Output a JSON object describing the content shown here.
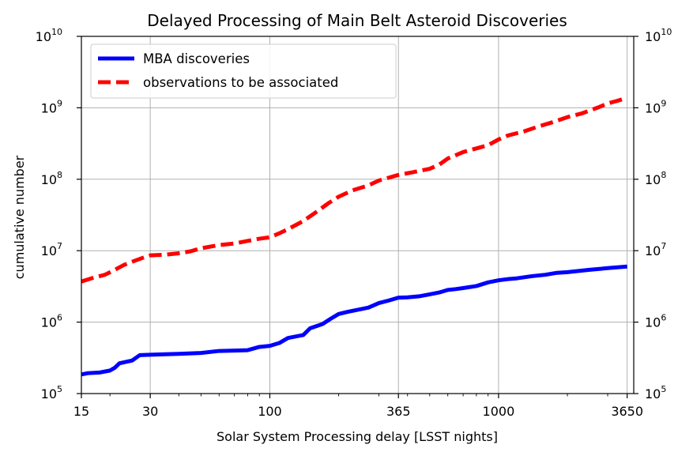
{
  "chart_data": {
    "type": "line",
    "title": "Delayed Processing of Main Belt Asteroid Discoveries",
    "xlabel": "Solar System Processing delay [LSST nights]",
    "ylabel": "cumulative number",
    "xscale": "log",
    "yscale": "log",
    "xlim": [
      15,
      3900
    ],
    "ylim": [
      100000,
      10000000000
    ],
    "x_ticks": [
      15,
      30,
      100,
      365,
      1000,
      3650
    ],
    "x_tick_labels": [
      "15",
      "30",
      "100",
      "365",
      "1000",
      "3650"
    ],
    "y_ticks": [
      100000,
      1000000,
      10000000,
      100000000,
      1000000000,
      10000000000
    ],
    "y_tick_labels": [
      {
        "base": "10",
        "exp": "5"
      },
      {
        "base": "10",
        "exp": "6"
      },
      {
        "base": "10",
        "exp": "7"
      },
      {
        "base": "10",
        "exp": "8"
      },
      {
        "base": "10",
        "exp": "9"
      },
      {
        "base": "10",
        "exp": "10"
      }
    ],
    "right_axis_mirrored": true,
    "grid": true,
    "legend_position": "top-left",
    "series": [
      {
        "name": "MBA discoveries",
        "color": "#0000ff",
        "style": "solid",
        "points": [
          [
            15,
            185000
          ],
          [
            16,
            193000
          ],
          [
            18,
            197000
          ],
          [
            20,
            210000
          ],
          [
            21,
            230000
          ],
          [
            22,
            265000
          ],
          [
            25,
            290000
          ],
          [
            27,
            345000
          ],
          [
            30,
            350000
          ],
          [
            35,
            355000
          ],
          [
            40,
            360000
          ],
          [
            50,
            370000
          ],
          [
            60,
            395000
          ],
          [
            70,
            400000
          ],
          [
            80,
            405000
          ],
          [
            90,
            450000
          ],
          [
            100,
            465000
          ],
          [
            110,
            510000
          ],
          [
            120,
            600000
          ],
          [
            140,
            660000
          ],
          [
            150,
            820000
          ],
          [
            160,
            880000
          ],
          [
            170,
            940000
          ],
          [
            185,
            1120000
          ],
          [
            200,
            1300000
          ],
          [
            220,
            1400000
          ],
          [
            250,
            1520000
          ],
          [
            270,
            1600000
          ],
          [
            300,
            1850000
          ],
          [
            330,
            2000000
          ],
          [
            365,
            2200000
          ],
          [
            400,
            2220000
          ],
          [
            450,
            2300000
          ],
          [
            500,
            2450000
          ],
          [
            550,
            2600000
          ],
          [
            600,
            2820000
          ],
          [
            650,
            2900000
          ],
          [
            700,
            3000000
          ],
          [
            800,
            3200000
          ],
          [
            900,
            3600000
          ],
          [
            1000,
            3850000
          ],
          [
            1100,
            4000000
          ],
          [
            1200,
            4100000
          ],
          [
            1400,
            4400000
          ],
          [
            1600,
            4600000
          ],
          [
            1800,
            4900000
          ],
          [
            2000,
            5000000
          ],
          [
            2500,
            5400000
          ],
          [
            3000,
            5700000
          ],
          [
            3650,
            6000000
          ]
        ]
      },
      {
        "name": "observations to be associated",
        "color": "#ff0000",
        "style": "dashed",
        "points": [
          [
            15,
            3700000
          ],
          [
            17,
            4200000
          ],
          [
            19,
            4600000
          ],
          [
            21,
            5400000
          ],
          [
            23,
            6300000
          ],
          [
            25,
            7000000
          ],
          [
            28,
            8000000
          ],
          [
            30,
            8600000
          ],
          [
            35,
            8800000
          ],
          [
            40,
            9200000
          ],
          [
            45,
            9800000
          ],
          [
            50,
            10800000
          ],
          [
            60,
            12000000
          ],
          [
            70,
            12600000
          ],
          [
            80,
            13700000
          ],
          [
            90,
            14700000
          ],
          [
            100,
            15400000
          ],
          [
            110,
            17500000
          ],
          [
            120,
            20000000
          ],
          [
            140,
            26000000
          ],
          [
            160,
            35000000
          ],
          [
            180,
            46000000
          ],
          [
            200,
            57000000
          ],
          [
            230,
            70000000
          ],
          [
            270,
            82000000
          ],
          [
            300,
            96000000
          ],
          [
            365,
            115000000
          ],
          [
            420,
            125000000
          ],
          [
            500,
            140000000
          ],
          [
            550,
            160000000
          ],
          [
            600,
            195000000
          ],
          [
            700,
            240000000
          ],
          [
            800,
            270000000
          ],
          [
            900,
            300000000
          ],
          [
            1000,
            360000000
          ],
          [
            1100,
            410000000
          ],
          [
            1300,
            470000000
          ],
          [
            1500,
            550000000
          ],
          [
            1700,
            620000000
          ],
          [
            2000,
            740000000
          ],
          [
            2300,
            830000000
          ],
          [
            2700,
            1000000000
          ],
          [
            3000,
            1150000000
          ],
          [
            3300,
            1250000000
          ],
          [
            3650,
            1380000000
          ]
        ]
      }
    ]
  }
}
